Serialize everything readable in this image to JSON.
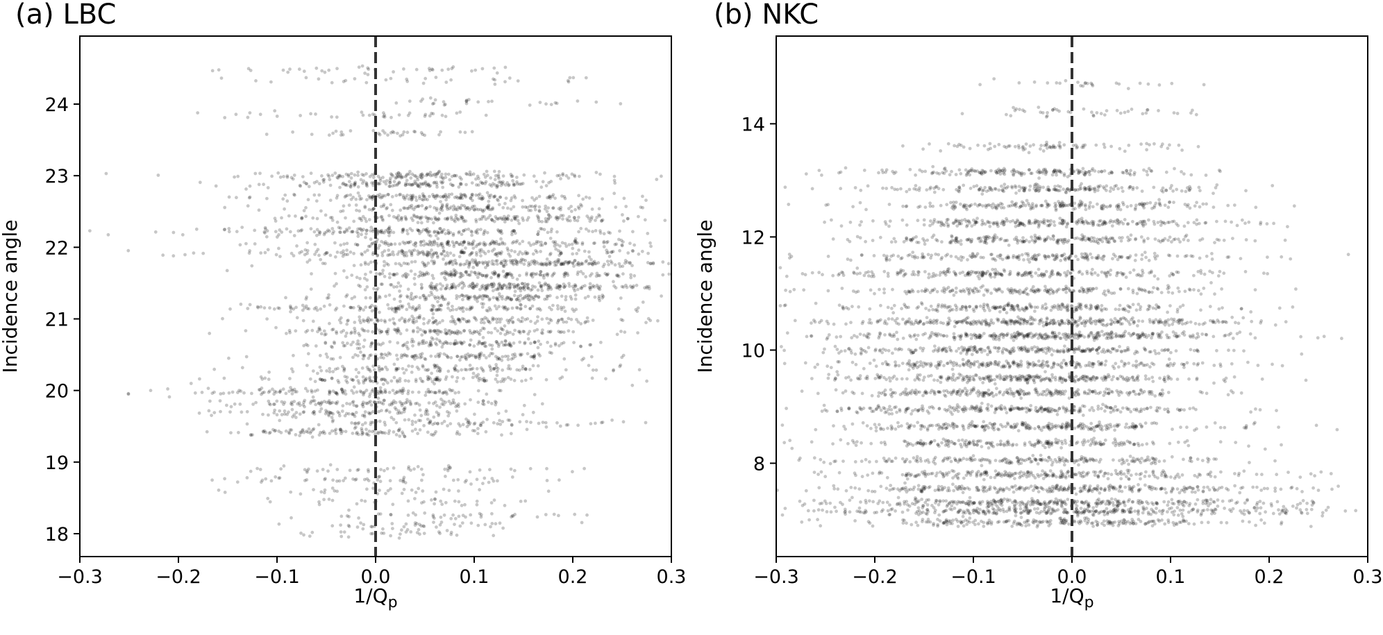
{
  "chart_data": [
    {
      "type": "scatter",
      "panel_label": "(a) LBC",
      "xlabel": "1/Q",
      "xlabel_sub": "p",
      "ylabel": "Incidence angle",
      "xlim": [
        -0.3,
        0.3
      ],
      "ylim": [
        17.68,
        24.95
      ],
      "xticks": [
        -0.3,
        -0.2,
        -0.1,
        0.0,
        0.1,
        0.2,
        0.3
      ],
      "xtick_labels": [
        "−0.3",
        "−0.2",
        "−0.1",
        "0.0",
        "0.1",
        "0.2",
        "0.3"
      ],
      "yticks": [
        18,
        19,
        20,
        21,
        22,
        23,
        24
      ],
      "ytick_labels": [
        "18",
        "19",
        "20",
        "21",
        "22",
        "23",
        "24"
      ],
      "reference_line_x": 0.0,
      "point_color": "#000000",
      "point_alpha": 0.22,
      "bands": [
        {
          "y": 24.48,
          "x_center": 0.02,
          "x_spread": 0.09,
          "count": 38
        },
        {
          "y": 24.33,
          "x_center": 0.05,
          "x_spread": 0.1,
          "count": 30
        },
        {
          "y": 24.02,
          "x_center": 0.1,
          "x_spread": 0.07,
          "count": 28
        },
        {
          "y": 23.85,
          "x_center": -0.02,
          "x_spread": 0.07,
          "count": 36
        },
        {
          "y": 23.6,
          "x_center": 0.02,
          "x_spread": 0.06,
          "count": 34
        },
        {
          "y": 23.0,
          "x_center": 0.04,
          "x_spread": 0.09,
          "count": 160
        },
        {
          "y": 22.88,
          "x_center": 0.05,
          "x_spread": 0.08,
          "count": 150
        },
        {
          "y": 22.7,
          "x_center": 0.06,
          "x_spread": 0.09,
          "count": 170
        },
        {
          "y": 22.55,
          "x_center": 0.08,
          "x_spread": 0.08,
          "count": 140
        },
        {
          "y": 22.4,
          "x_center": 0.1,
          "x_spread": 0.09,
          "count": 180
        },
        {
          "y": 22.22,
          "x_center": 0.04,
          "x_spread": 0.11,
          "count": 200
        },
        {
          "y": 22.05,
          "x_center": 0.1,
          "x_spread": 0.09,
          "count": 180
        },
        {
          "y": 21.92,
          "x_center": 0.05,
          "x_spread": 0.1,
          "count": 190
        },
        {
          "y": 21.78,
          "x_center": 0.14,
          "x_spread": 0.08,
          "count": 210
        },
        {
          "y": 21.62,
          "x_center": 0.12,
          "x_spread": 0.08,
          "count": 180
        },
        {
          "y": 21.45,
          "x_center": 0.13,
          "x_spread": 0.07,
          "count": 220
        },
        {
          "y": 21.3,
          "x_center": 0.09,
          "x_spread": 0.08,
          "count": 150
        },
        {
          "y": 21.15,
          "x_center": 0.05,
          "x_spread": 0.09,
          "count": 160
        },
        {
          "y": 20.98,
          "x_center": 0.08,
          "x_spread": 0.08,
          "count": 150
        },
        {
          "y": 20.82,
          "x_center": 0.06,
          "x_spread": 0.08,
          "count": 150
        },
        {
          "y": 20.65,
          "x_center": 0.09,
          "x_spread": 0.08,
          "count": 140
        },
        {
          "y": 20.48,
          "x_center": 0.07,
          "x_spread": 0.08,
          "count": 130
        },
        {
          "y": 20.3,
          "x_center": 0.06,
          "x_spread": 0.08,
          "count": 120
        },
        {
          "y": 20.15,
          "x_center": 0.03,
          "x_spread": 0.09,
          "count": 120
        },
        {
          "y": 19.98,
          "x_center": -0.03,
          "x_spread": 0.08,
          "count": 140
        },
        {
          "y": 19.82,
          "x_center": -0.01,
          "x_spread": 0.07,
          "count": 130
        },
        {
          "y": 19.68,
          "x_center": -0.02,
          "x_spread": 0.07,
          "count": 100
        },
        {
          "y": 19.55,
          "x_center": 0.1,
          "x_spread": 0.09,
          "count": 90
        },
        {
          "y": 19.42,
          "x_center": -0.02,
          "x_spread": 0.07,
          "count": 110
        },
        {
          "y": 18.9,
          "x_center": 0.03,
          "x_spread": 0.09,
          "count": 45
        },
        {
          "y": 18.75,
          "x_center": 0.0,
          "x_spread": 0.09,
          "count": 55
        },
        {
          "y": 18.6,
          "x_center": 0.01,
          "x_spread": 0.07,
          "count": 30
        },
        {
          "y": 18.45,
          "x_center": 0.02,
          "x_spread": 0.07,
          "count": 35
        },
        {
          "y": 18.25,
          "x_center": 0.06,
          "x_spread": 0.07,
          "count": 40
        },
        {
          "y": 18.12,
          "x_center": 0.04,
          "x_spread": 0.07,
          "count": 40
        },
        {
          "y": 18.0,
          "x_center": 0.0,
          "x_spread": 0.06,
          "count": 30
        }
      ]
    },
    {
      "type": "scatter",
      "panel_label": "(b) NKC",
      "xlabel": "1/Q",
      "xlabel_sub": "p",
      "ylabel": "Incidence angle",
      "xlim": [
        -0.3,
        0.3
      ],
      "ylim": [
        6.35,
        15.55
      ],
      "xticks": [
        -0.3,
        -0.2,
        -0.1,
        0.0,
        0.1,
        0.2,
        0.3
      ],
      "xtick_labels": [
        "−0.3",
        "−0.2",
        "−0.1",
        "0.0",
        "0.1",
        "0.2",
        "0.3"
      ],
      "yticks": [
        8,
        10,
        12,
        14
      ],
      "ytick_labels": [
        "8",
        "10",
        "12",
        "14"
      ],
      "reference_line_x": 0.0,
      "point_color": "#000000",
      "point_alpha": 0.22,
      "bands": [
        {
          "y": 14.7,
          "x_center": 0.01,
          "x_spread": 0.06,
          "count": 25
        },
        {
          "y": 14.2,
          "x_center": 0.0,
          "x_spread": 0.06,
          "count": 45
        },
        {
          "y": 13.6,
          "x_center": -0.02,
          "x_spread": 0.07,
          "count": 80
        },
        {
          "y": 13.15,
          "x_center": -0.04,
          "x_spread": 0.09,
          "count": 180
        },
        {
          "y": 12.85,
          "x_center": -0.02,
          "x_spread": 0.09,
          "count": 190
        },
        {
          "y": 12.55,
          "x_center": -0.02,
          "x_spread": 0.09,
          "count": 200
        },
        {
          "y": 12.25,
          "x_center": -0.02,
          "x_spread": 0.1,
          "count": 240
        },
        {
          "y": 11.95,
          "x_center": -0.03,
          "x_spread": 0.1,
          "count": 220
        },
        {
          "y": 11.65,
          "x_center": -0.05,
          "x_spread": 0.1,
          "count": 200
        },
        {
          "y": 11.35,
          "x_center": -0.06,
          "x_spread": 0.1,
          "count": 230
        },
        {
          "y": 11.05,
          "x_center": -0.05,
          "x_spread": 0.1,
          "count": 200
        },
        {
          "y": 10.75,
          "x_center": -0.05,
          "x_spread": 0.1,
          "count": 230
        },
        {
          "y": 10.5,
          "x_center": -0.03,
          "x_spread": 0.1,
          "count": 330
        },
        {
          "y": 10.25,
          "x_center": -0.03,
          "x_spread": 0.1,
          "count": 330
        },
        {
          "y": 10.0,
          "x_center": -0.05,
          "x_spread": 0.1,
          "count": 260
        },
        {
          "y": 9.75,
          "x_center": -0.06,
          "x_spread": 0.1,
          "count": 250
        },
        {
          "y": 9.5,
          "x_center": -0.06,
          "x_spread": 0.09,
          "count": 280
        },
        {
          "y": 9.25,
          "x_center": -0.06,
          "x_spread": 0.09,
          "count": 250
        },
        {
          "y": 8.95,
          "x_center": -0.05,
          "x_spread": 0.1,
          "count": 260
        },
        {
          "y": 8.65,
          "x_center": -0.05,
          "x_spread": 0.1,
          "count": 260
        },
        {
          "y": 8.35,
          "x_center": -0.06,
          "x_spread": 0.1,
          "count": 210
        },
        {
          "y": 8.05,
          "x_center": -0.05,
          "x_spread": 0.1,
          "count": 210
        },
        {
          "y": 7.8,
          "x_center": -0.02,
          "x_spread": 0.11,
          "count": 250
        },
        {
          "y": 7.55,
          "x_center": -0.02,
          "x_spread": 0.12,
          "count": 290
        },
        {
          "y": 7.3,
          "x_center": -0.03,
          "x_spread": 0.13,
          "count": 330
        },
        {
          "y": 7.15,
          "x_center": 0.0,
          "x_spread": 0.14,
          "count": 330
        },
        {
          "y": 6.95,
          "x_center": -0.02,
          "x_spread": 0.11,
          "count": 220
        }
      ]
    }
  ]
}
